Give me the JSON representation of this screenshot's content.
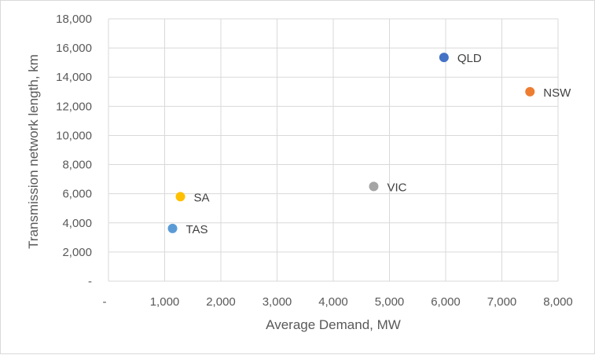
{
  "chart_data": {
    "type": "scatter",
    "title": "",
    "xlabel": "Average Demand, MW",
    "ylabel": "Transmission network length, km",
    "xlim": [
      0,
      8000
    ],
    "ylim": [
      0,
      18000
    ],
    "x_ticks": [
      {
        "value": 0,
        "label": "-"
      },
      {
        "value": 1000,
        "label": "1,000"
      },
      {
        "value": 2000,
        "label": "2,000"
      },
      {
        "value": 3000,
        "label": "3,000"
      },
      {
        "value": 4000,
        "label": "4,000"
      },
      {
        "value": 5000,
        "label": "5,000"
      },
      {
        "value": 6000,
        "label": "6,000"
      },
      {
        "value": 7000,
        "label": "7,000"
      },
      {
        "value": 8000,
        "label": "8,000"
      }
    ],
    "y_ticks": [
      {
        "value": 0,
        "label": "-"
      },
      {
        "value": 2000,
        "label": "2,000"
      },
      {
        "value": 4000,
        "label": "4,000"
      },
      {
        "value": 6000,
        "label": "6,000"
      },
      {
        "value": 8000,
        "label": "8,000"
      },
      {
        "value": 10000,
        "label": "10,000"
      },
      {
        "value": 12000,
        "label": "12,000"
      },
      {
        "value": 14000,
        "label": "14,000"
      },
      {
        "value": 16000,
        "label": "16,000"
      },
      {
        "value": 18000,
        "label": "18,000"
      }
    ],
    "grid": true,
    "legend": "none",
    "points": [
      {
        "label": "QLD",
        "x": 5970,
        "y": 15350,
        "color": "#4472c4"
      },
      {
        "label": "NSW",
        "x": 7500,
        "y": 13000,
        "color": "#ed7d31"
      },
      {
        "label": "VIC",
        "x": 4720,
        "y": 6500,
        "color": "#a5a5a5"
      },
      {
        "label": "SA",
        "x": 1280,
        "y": 5800,
        "color": "#ffc000"
      },
      {
        "label": "TAS",
        "x": 1140,
        "y": 3620,
        "color": "#5b9bd5"
      }
    ]
  }
}
